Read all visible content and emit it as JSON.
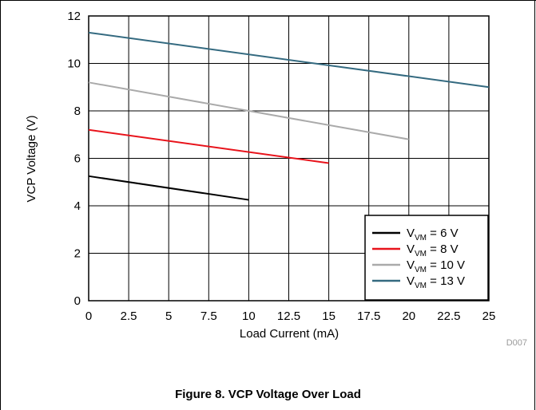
{
  "chart_data": {
    "type": "line",
    "ylabel": "VCP Voltage (V)",
    "xlabel": "Load Current (mA)",
    "xlim": [
      0,
      25
    ],
    "ylim": [
      0,
      12
    ],
    "xticks": [
      "0",
      "2.5",
      "5",
      "7.5",
      "10",
      "12.5",
      "15",
      "17.5",
      "20",
      "22.5",
      "25"
    ],
    "yticks": [
      "0",
      "2",
      "4",
      "6",
      "8",
      "10",
      "12"
    ],
    "grid": true,
    "legend_position": "bottom-right",
    "series": [
      {
        "name_main": "V",
        "name_sub": "VM",
        "name_tail": " = 6 V",
        "color": "#000000",
        "x": [
          0,
          10
        ],
        "y": [
          5.25,
          4.25
        ]
      },
      {
        "name_main": "V",
        "name_sub": "VM",
        "name_tail": " = 8 V",
        "color": "#e8131b",
        "x": [
          0,
          15
        ],
        "y": [
          7.2,
          5.8
        ]
      },
      {
        "name_main": "V",
        "name_sub": "VM",
        "name_tail": " = 10 V",
        "color": "#aaaaaa",
        "x": [
          0,
          20
        ],
        "y": [
          9.2,
          6.8
        ]
      },
      {
        "name_main": "V",
        "name_sub": "VM",
        "name_tail": " = 13 V",
        "color": "#346a80",
        "x": [
          0,
          25
        ],
        "y": [
          11.3,
          9.0
        ]
      }
    ]
  },
  "figure_code": "D007",
  "caption": "Figure 8. VCP Voltage Over Load"
}
